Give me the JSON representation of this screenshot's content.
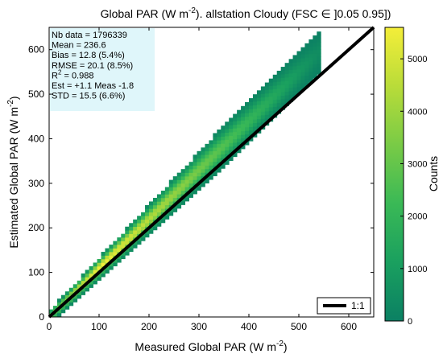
{
  "chart_data": {
    "type": "heatmap",
    "title_parts": {
      "prefix": "Global PAR (W m",
      "exponent": "-2",
      "suffix": "). allstation  Cloudy (FSC ∈ ]0.05 0.95])"
    },
    "xlabel_parts": {
      "prefix": "Measured Global PAR (W m",
      "exponent": "-2",
      "suffix": ")"
    },
    "ylabel_parts": {
      "prefix": "Estimated Global PAR (W m",
      "exponent": "-2",
      "suffix": ")"
    },
    "xlim": [
      0,
      650
    ],
    "ylim": [
      0,
      650
    ],
    "xticks": [
      0,
      100,
      200,
      300,
      400,
      500,
      600
    ],
    "yticks": [
      0,
      100,
      200,
      300,
      400,
      500,
      600
    ],
    "grid": false,
    "reference_line": {
      "label": "1:1",
      "from": [
        0,
        0
      ],
      "to": [
        650,
        650
      ],
      "color": "#000000"
    },
    "legend_placement": "bottom-right",
    "density": {
      "x_range": [
        0,
        540
      ],
      "center_offset": 1.1,
      "half_width_min": 15,
      "half_width_max": 45,
      "peak_count": 5600,
      "peak_x": 100
    },
    "colorbar": {
      "label": "Counts",
      "range": [
        0,
        5600
      ],
      "ticks": [
        0,
        1000,
        2000,
        3000,
        4000,
        5000
      ],
      "colors": [
        "#0b8063",
        "#1aa05f",
        "#3ab956",
        "#79cb46",
        "#b9dc39",
        "#f4ee39"
      ]
    },
    "stats": {
      "lines": [
        "Nb data  = 1796339",
        "Mean    = 236.6",
        "Bias      = 12.8 (5.4%)",
        "RMSE   = 20.1  (8.5%)"
      ],
      "r2_label": "R",
      "r2_exp": "2",
      "r2_value": "        = 0.988",
      "lines_after": [
        "Est   = +1.1 Meas -1.8",
        "STD      = 15.5 (6.6%)"
      ],
      "box_color": "#dff6fa"
    }
  }
}
